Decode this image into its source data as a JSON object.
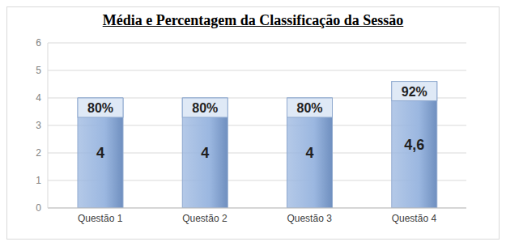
{
  "chart_data": {
    "type": "bar",
    "title": "Média e Percentagem da Classificação da Sessão",
    "categories": [
      "Questão 1",
      "Questão 2",
      "Questão 3",
      "Questão 4"
    ],
    "values": [
      4,
      4,
      4,
      4.6
    ],
    "value_labels": [
      "4",
      "4",
      "4",
      "4,6"
    ],
    "percentage_labels": [
      "80%",
      "80%",
      "80%",
      "92%"
    ],
    "color": "#9bb7e0",
    "ylim": [
      0,
      6
    ],
    "yticks": [
      0,
      1,
      2,
      3,
      4,
      5,
      6
    ],
    "grid": true,
    "data_labels": true
  }
}
